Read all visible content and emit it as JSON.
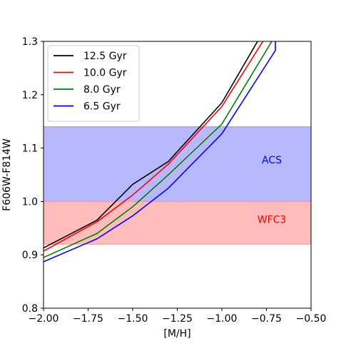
{
  "chart_data": {
    "type": "line",
    "title": "",
    "xlabel": "[M/H]",
    "ylabel": "F606W-F814W",
    "xlim": [
      -2.0,
      -0.5
    ],
    "ylim": [
      0.8,
      1.3
    ],
    "xticks": [
      -2.0,
      -1.75,
      -1.5,
      -1.25,
      -1.0,
      -0.75,
      -0.5
    ],
    "xtick_labels": [
      "−2.00",
      "−1.75",
      "−1.50",
      "−1.25",
      "−1.00",
      "−0.75",
      "−0.50"
    ],
    "yticks": [
      0.8,
      0.9,
      1.0,
      1.1,
      1.2,
      1.3
    ],
    "ytick_labels": [
      "0.8",
      "0.9",
      "1.0",
      "1.1",
      "1.2",
      "1.3"
    ],
    "grid": false,
    "legend_position": "top-left",
    "series": [
      {
        "name": "12.5 Gyr",
        "color": "#000000",
        "x": [
          -2.0,
          -1.7,
          -1.5,
          -1.3,
          -1.0,
          -0.8
        ],
        "y": [
          0.913,
          0.965,
          1.032,
          1.075,
          1.185,
          1.3
        ]
      },
      {
        "name": "10.0 Gyr",
        "color": "#ff0000",
        "x": [
          -2.0,
          -1.7,
          -1.5,
          -1.3,
          -1.0,
          -0.77
        ],
        "y": [
          0.907,
          0.962,
          1.012,
          1.07,
          1.178,
          1.3
        ]
      },
      {
        "name": "8.0 Gyr",
        "color": "#008000",
        "x": [
          -2.0,
          -1.7,
          -1.5,
          -1.3,
          -1.0,
          -0.72
        ],
        "y": [
          0.895,
          0.94,
          0.99,
          1.05,
          1.145,
          1.3
        ]
      },
      {
        "name": "6.5 Gyr",
        "color": "#0000ff",
        "x": [
          -2.0,
          -1.7,
          -1.5,
          -1.3,
          -1.0,
          -0.7,
          -0.7
        ],
        "y": [
          0.887,
          0.93,
          0.973,
          1.025,
          1.127,
          1.283,
          1.3
        ]
      }
    ],
    "bands": [
      {
        "label": "ACS",
        "y": [
          1.0,
          1.14
        ],
        "fill_color": "#b8b8ff",
        "edge_color": "#8f8ff0",
        "label_color": "#0000ff",
        "label_x": -0.72,
        "label_y": 1.077
      },
      {
        "label": "WFC3",
        "y": [
          0.92,
          1.0
        ],
        "fill_color": "#ffbcbc",
        "edge_color": "#f09a9a",
        "label_color": "#ff0000",
        "label_x": -0.72,
        "label_y": 0.965
      }
    ]
  }
}
